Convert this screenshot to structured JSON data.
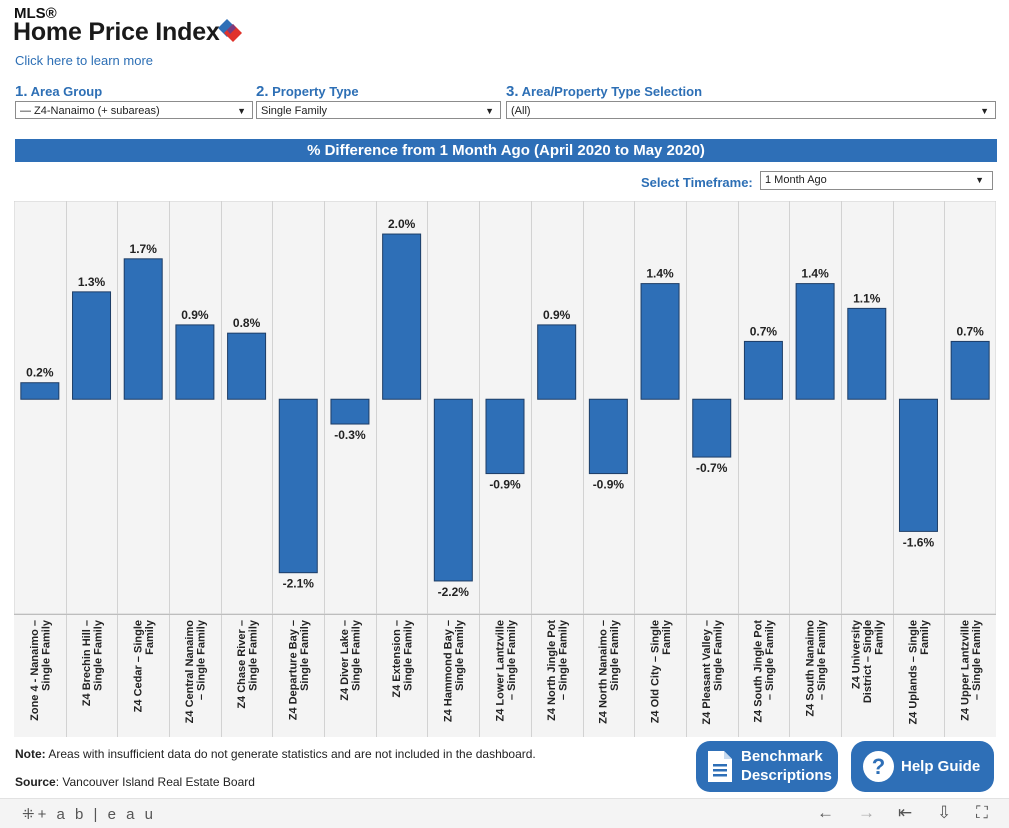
{
  "header": {
    "mls_label": "MLS®",
    "title": "Home Price Index",
    "learn_more_link": "Click here to learn more"
  },
  "filters": {
    "area_group": {
      "number": "1.",
      "label": "Area Group",
      "value": "— Z4-Nanaimo (+ subareas)"
    },
    "property_type": {
      "number": "2.",
      "label": "Property Type",
      "value": "Single Family"
    },
    "selection": {
      "number": "3.",
      "label": "Area/Property Type Selection",
      "value": "(All)"
    }
  },
  "banner_title": "% Difference from 1 Month Ago (April 2020 to May 2020)",
  "timeframe": {
    "label": "Select Timeframe:",
    "value": "1 Month Ago"
  },
  "chart_data": {
    "type": "bar",
    "categories": [
      "Zone 4 - Nanaimo – Single Family",
      "Z4 Brechin Hill – Single Family",
      "Z4 Cedar – Single Family",
      "Z4 Central Nanaimo – Single Family",
      "Z4 Chase River – Single Family",
      "Z4 Departure Bay – Single Family",
      "Z4 Diver Lake – Single Family",
      "Z4 Extension – Single Family",
      "Z4 Hammond Bay – Single Family",
      "Z4 Lower Lantzville – Single Family",
      "Z4 North Jingle Pot – Single Family",
      "Z4 North Nanaimo – Single Family",
      "Z4 Old City – Single Family",
      "Z4 Pleasant Valley – Single Family",
      "Z4 South Jingle Pot – Single Family",
      "Z4 South Nanaimo – Single Family",
      "Z4 University District – Single Family",
      "Z4 Uplands – Single Family",
      "Z4 Upper Lantzville – Single Family"
    ],
    "category_lines": [
      [
        "Zone 4 - Nanaimo –",
        "Single Family"
      ],
      [
        "Z4 Brechin Hill –",
        "Single Family"
      ],
      [
        "Z4 Cedar – Single",
        "Family"
      ],
      [
        "Z4 Central Nanaimo",
        "– Single Family"
      ],
      [
        "Z4 Chase River –",
        "Single Family"
      ],
      [
        "Z4 Departure Bay –",
        "Single Family"
      ],
      [
        "Z4 Diver Lake –",
        "Single Family"
      ],
      [
        "Z4 Extension –",
        "Single Family"
      ],
      [
        "Z4 Hammond Bay –",
        "Single Family"
      ],
      [
        "Z4 Lower Lantzville",
        "– Single Family"
      ],
      [
        "Z4 North Jingle Pot",
        "– Single Family"
      ],
      [
        "Z4 North Nanaimo –",
        "Single Family"
      ],
      [
        "Z4 Old City – Single",
        "Family"
      ],
      [
        "Z4 Pleasant Valley –",
        "Single Family"
      ],
      [
        "Z4 South Jingle Pot",
        "– Single Family"
      ],
      [
        "Z4 South Nanaimo",
        "– Single Family"
      ],
      [
        "Z4 University",
        "District – Single",
        "Family"
      ],
      [
        "Z4 Uplands – Single",
        "Family"
      ],
      [
        "Z4 Upper Lantzville",
        "– Single Family"
      ]
    ],
    "values": [
      0.2,
      1.3,
      1.7,
      0.9,
      0.8,
      -2.1,
      -0.3,
      2.0,
      -2.2,
      -0.9,
      0.9,
      -0.9,
      1.4,
      -0.7,
      0.7,
      1.4,
      1.1,
      -1.6,
      0.7
    ],
    "data_labels": [
      "0.2%",
      "1.3%",
      "1.7%",
      "0.9%",
      "0.8%",
      "-2.1%",
      "-0.3%",
      "2.0%",
      "-2.2%",
      "-0.9%",
      "0.9%",
      "-0.9%",
      "1.4%",
      "-0.7%",
      "0.7%",
      "1.4%",
      "1.1%",
      "-1.6%",
      "0.7%"
    ],
    "ylim": [
      -2.6,
      2.4
    ],
    "bar_color": "#2e6fb7",
    "background_color": "#f4f4f4",
    "grid": false,
    "legend": "none"
  },
  "note": {
    "prefix": "Note:",
    "text": " Areas with insufficient data do not generate statistics and are not included in the dashboard."
  },
  "source": {
    "prefix": "Source",
    "text": ": Vancouver Island Real Estate Board"
  },
  "buttons": {
    "benchmark_line1": "Benchmark",
    "benchmark_line2": "Descriptions",
    "help": "Help Guide"
  },
  "footer": {
    "tableau_logo": "+ a b | e a u",
    "icons": [
      "back-arrow-icon",
      "forward-arrow-icon",
      "first-page-icon",
      "download-icon",
      "fullscreen-icon"
    ]
  },
  "colors": {
    "accent_blue": "#2e6fb7",
    "logo_red": "#e0322b"
  }
}
